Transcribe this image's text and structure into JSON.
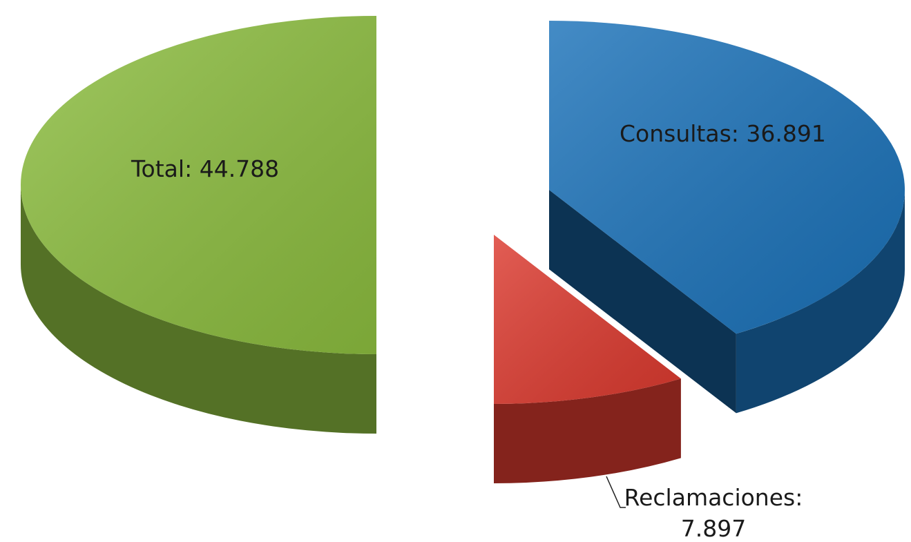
{
  "chart_data": {
    "type": "pie",
    "categories": [
      "Total:",
      "Consultas:",
      "Reclamaciones:"
    ],
    "values": [
      44788,
      36891,
      7897
    ],
    "value_labels": [
      "44.788",
      "36.891",
      "7.897"
    ],
    "colors": [
      "#8cbd3f",
      "#1b72b9",
      "#dc3a2f"
    ]
  }
}
